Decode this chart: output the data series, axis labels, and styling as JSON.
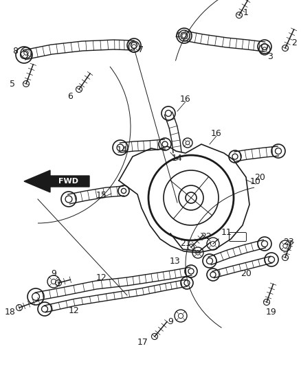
{
  "bg_color": "#ffffff",
  "line_color": "#1a1a1a",
  "fig_width": 4.38,
  "fig_height": 5.33,
  "dpi": 100
}
